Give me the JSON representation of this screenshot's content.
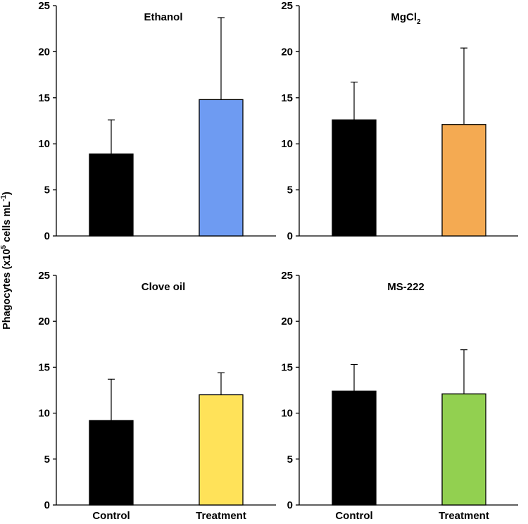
{
  "chart_data": {
    "type": "bar",
    "ylabel": {
      "prefix": "Phagocytes (x10",
      "exp1": "5",
      "middle": " cells mL",
      "exp2": "-1",
      "suffix": ")"
    },
    "ylim": [
      0,
      25
    ],
    "yticks": [
      "0",
      "5",
      "10",
      "15",
      "20",
      "25"
    ],
    "categories": [
      "Control",
      "Treatment"
    ],
    "error_bars": "upper",
    "panels": [
      {
        "title": "Ethanol",
        "title_sub": "",
        "values": [
          8.9,
          14.8
        ],
        "errors": [
          3.7,
          8.9
        ],
        "colors": [
          "#000000",
          "#6e9bf2"
        ]
      },
      {
        "title": "MgCl",
        "title_sub": "2",
        "values": [
          12.6,
          12.1
        ],
        "errors": [
          4.1,
          8.3
        ],
        "colors": [
          "#000000",
          "#f4aa52"
        ]
      },
      {
        "title": "Clove oil",
        "title_sub": "",
        "values": [
          9.2,
          12.0
        ],
        "errors": [
          4.5,
          2.4
        ],
        "colors": [
          "#000000",
          "#ffe259"
        ]
      },
      {
        "title": "MS-222",
        "title_sub": "",
        "values": [
          12.4,
          12.1
        ],
        "errors": [
          2.9,
          4.8
        ],
        "colors": [
          "#000000",
          "#92d050"
        ]
      }
    ]
  }
}
